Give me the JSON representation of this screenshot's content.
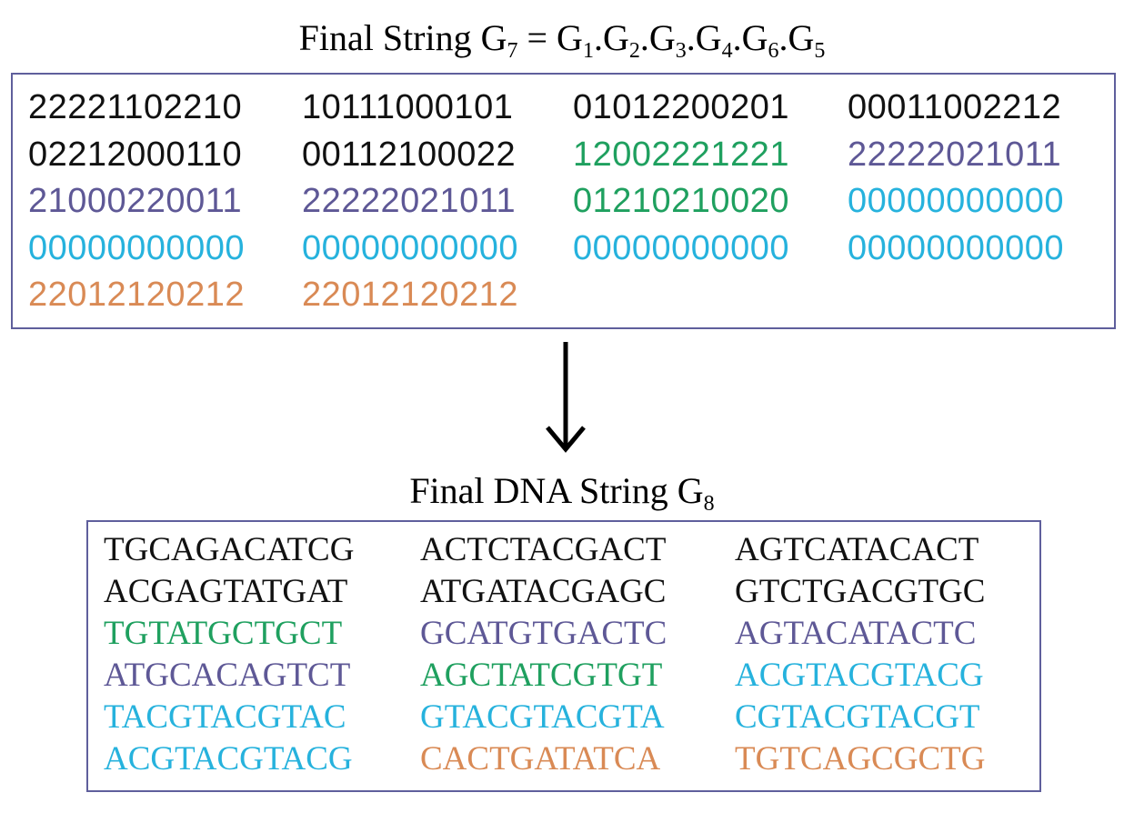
{
  "title1": {
    "prefix": "Final String G",
    "sub7": "7",
    "eq": " = G",
    "terms": [
      {
        "sub": "1",
        "sep": ".G"
      },
      {
        "sub": "2",
        "sep": ".G"
      },
      {
        "sub": "3",
        "sep": ".G"
      },
      {
        "sub": "4",
        "sep": ".G"
      },
      {
        "sub": "6",
        "sep": ".G"
      },
      {
        "sub": "5",
        "sep": ""
      }
    ]
  },
  "title2": {
    "prefix": "Final DNA String G",
    "sub": "8"
  },
  "colors": {
    "black": "#111111",
    "green": "#1fa05f",
    "purple": "#5e5896",
    "cyan": "#26b2dd",
    "orange": "#d98a55"
  },
  "numbers": [
    {
      "text": "22221102210",
      "color": "black"
    },
    {
      "text": "10111000101",
      "color": "black"
    },
    {
      "text": "01012200201",
      "color": "black"
    },
    {
      "text": "00011002212",
      "color": "black"
    },
    {
      "text": "02212000110",
      "color": "black"
    },
    {
      "text": "00112100022",
      "color": "black"
    },
    {
      "text": "12002221221",
      "color": "green"
    },
    {
      "text": "22222021011",
      "color": "purple"
    },
    {
      "text": "21000220011",
      "color": "purple"
    },
    {
      "text": "22222021011",
      "color": "purple"
    },
    {
      "text": "01210210020",
      "color": "green"
    },
    {
      "text": "00000000000",
      "color": "cyan"
    },
    {
      "text": "00000000000",
      "color": "cyan"
    },
    {
      "text": "00000000000",
      "color": "cyan"
    },
    {
      "text": "00000000000",
      "color": "cyan"
    },
    {
      "text": "00000000000",
      "color": "cyan"
    },
    {
      "text": "22012120212",
      "color": "orange"
    },
    {
      "text": "22012120212",
      "color": "orange"
    }
  ],
  "dna": [
    {
      "text": "TGCAGACATCG",
      "color": "black"
    },
    {
      "text": "ACTCTACGACT",
      "color": "black"
    },
    {
      "text": "AGTCATACACT",
      "color": "black"
    },
    {
      "text": "ACGAGTATGAT",
      "color": "black"
    },
    {
      "text": "ATGATACGAGC",
      "color": "black"
    },
    {
      "text": "GTCTGACGTGC",
      "color": "black"
    },
    {
      "text": "TGTATGCTGCT",
      "color": "green"
    },
    {
      "text": "GCATGTGACTC",
      "color": "purple"
    },
    {
      "text": "AGTACATACTC",
      "color": "purple"
    },
    {
      "text": "ATGCACAGTCT",
      "color": "purple"
    },
    {
      "text": "AGCTATCGTGT",
      "color": "green"
    },
    {
      "text": "ACGTACGTACG",
      "color": "cyan"
    },
    {
      "text": "TACGTACGTAC",
      "color": "cyan"
    },
    {
      "text": "GTACGTACGTA",
      "color": "cyan"
    },
    {
      "text": "CGTACGTACGT",
      "color": "cyan"
    },
    {
      "text": "ACGTACGTACG",
      "color": "cyan"
    },
    {
      "text": "CACTGATATCA",
      "color": "orange"
    },
    {
      "text": "TGTCAGCGCTG",
      "color": "orange"
    }
  ]
}
